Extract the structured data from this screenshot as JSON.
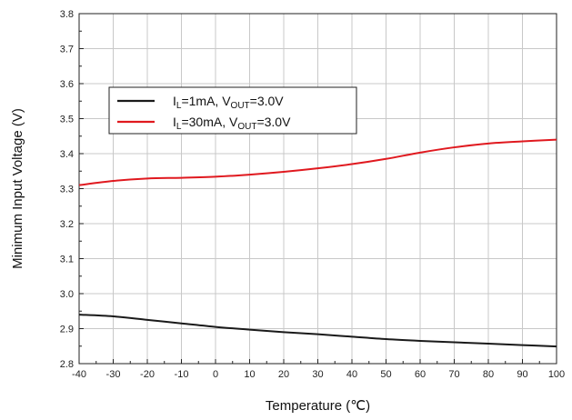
{
  "chart_data": {
    "type": "line",
    "xlabel": "Temperature (℃)",
    "ylabel": "Minimum Input Voltage (V)",
    "xlim": [
      -40,
      100
    ],
    "ylim": [
      2.8,
      3.8
    ],
    "x_ticks": [
      -40,
      -30,
      -20,
      -10,
      0,
      10,
      20,
      30,
      40,
      50,
      60,
      70,
      80,
      90,
      100
    ],
    "y_ticks": [
      "2.8",
      "2.9",
      "3.0",
      "3.1",
      "3.2",
      "3.3",
      "3.4",
      "3.5",
      "3.6",
      "3.7",
      "3.8"
    ],
    "grid": true,
    "legend_position": "upper-left",
    "series": [
      {
        "name": "IL=1mA, VOUT=3.0V",
        "legend": {
          "main": "I",
          "sub1": "L",
          "mid": "=1mA, V",
          "sub2": "OUT",
          "end": "=3.0V"
        },
        "color": "#1a1a1a",
        "x": [
          -40,
          -30,
          -20,
          -10,
          0,
          10,
          20,
          30,
          40,
          50,
          60,
          70,
          80,
          90,
          100
        ],
        "y": [
          2.94,
          2.935,
          2.925,
          2.915,
          2.905,
          2.897,
          2.89,
          2.884,
          2.877,
          2.87,
          2.865,
          2.861,
          2.857,
          2.853,
          2.849
        ]
      },
      {
        "name": "IL=30mA, VOUT=3.0V",
        "legend": {
          "main": "I",
          "sub1": "L",
          "mid": "=30mA, V",
          "sub2": "OUT",
          "end": "=3.0V"
        },
        "color": "#e0191f",
        "x": [
          -40,
          -30,
          -20,
          -10,
          0,
          10,
          20,
          30,
          40,
          50,
          60,
          70,
          80,
          90,
          100
        ],
        "y": [
          3.31,
          3.322,
          3.329,
          3.331,
          3.334,
          3.34,
          3.348,
          3.358,
          3.37,
          3.385,
          3.403,
          3.418,
          3.429,
          3.435,
          3.44
        ]
      }
    ]
  }
}
